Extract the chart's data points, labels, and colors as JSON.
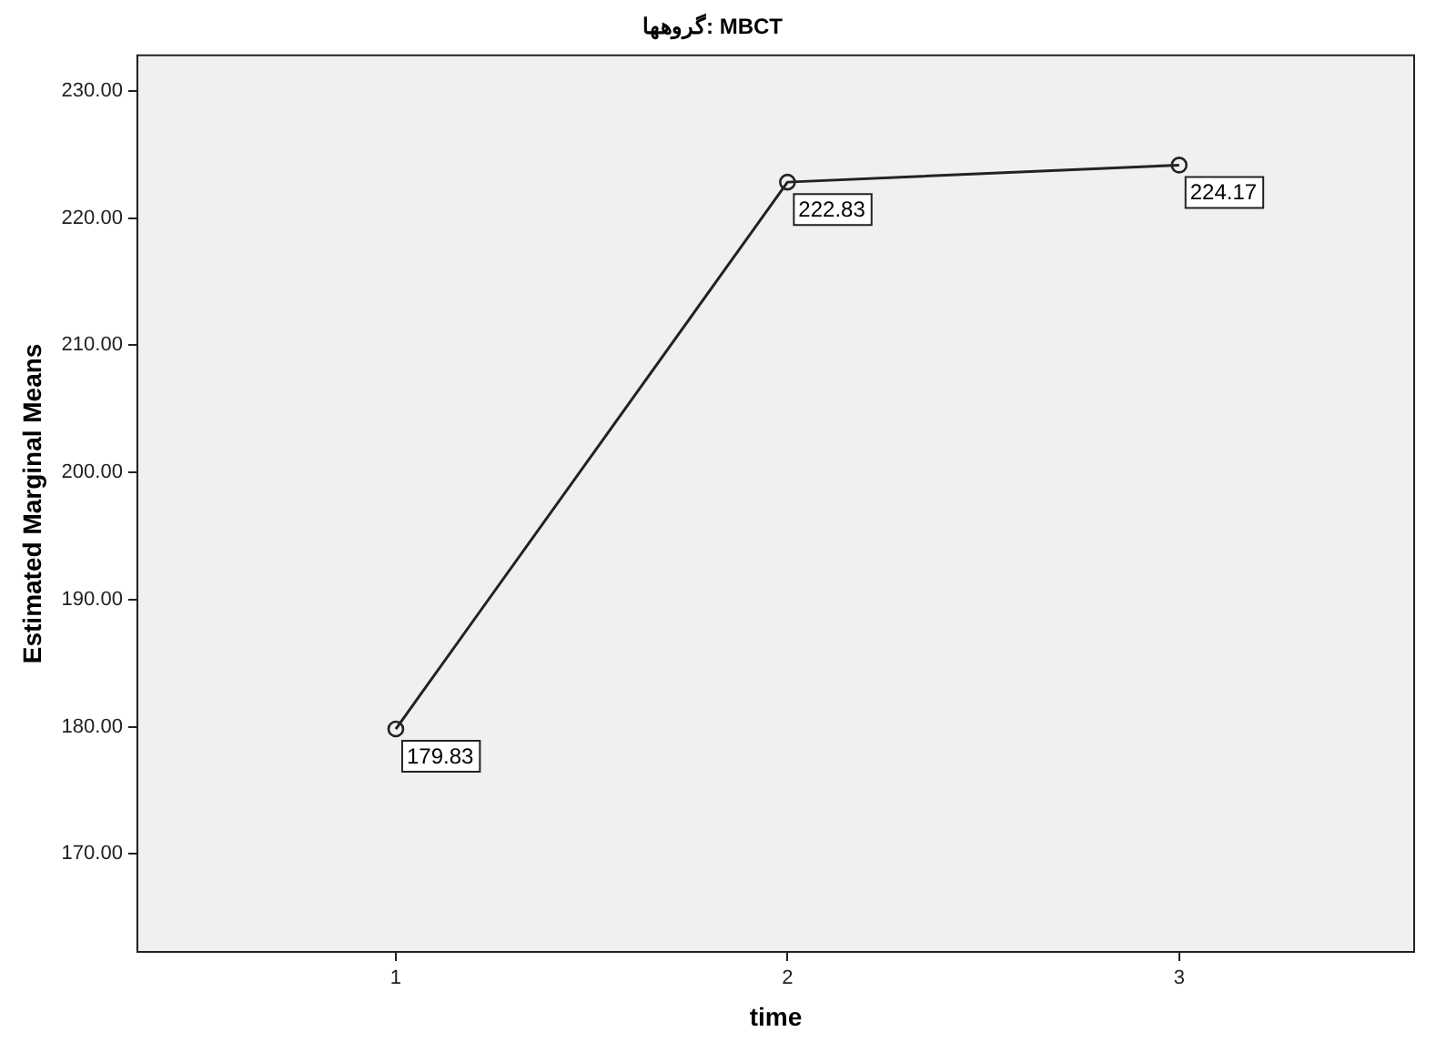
{
  "chart_data": {
    "type": "line",
    "title": "گروهها: MBCT",
    "xlabel": "time",
    "ylabel": "Estimated Marginal Means",
    "x": [
      1,
      2,
      3
    ],
    "series": [
      {
        "color": "#222222",
        "values": [
          179.83,
          222.83,
          224.17
        ]
      }
    ],
    "xlim": [
      0.34,
      3.6
    ],
    "xticks": [
      1,
      2,
      3
    ],
    "ylim": [
      162.3,
      232.8
    ],
    "yticks": [
      {
        "value": 170,
        "label": "170.00"
      },
      {
        "value": 180,
        "label": "180.00"
      },
      {
        "value": 190,
        "label": "190.00"
      },
      {
        "value": 200,
        "label": "200.00"
      },
      {
        "value": 210,
        "label": "210.00"
      },
      {
        "value": 220,
        "label": "220.00"
      },
      {
        "value": 230,
        "label": "230.00"
      }
    ],
    "data_labels": true,
    "marker": "circle",
    "line_style": "solid",
    "grid": false,
    "legend": false
  }
}
